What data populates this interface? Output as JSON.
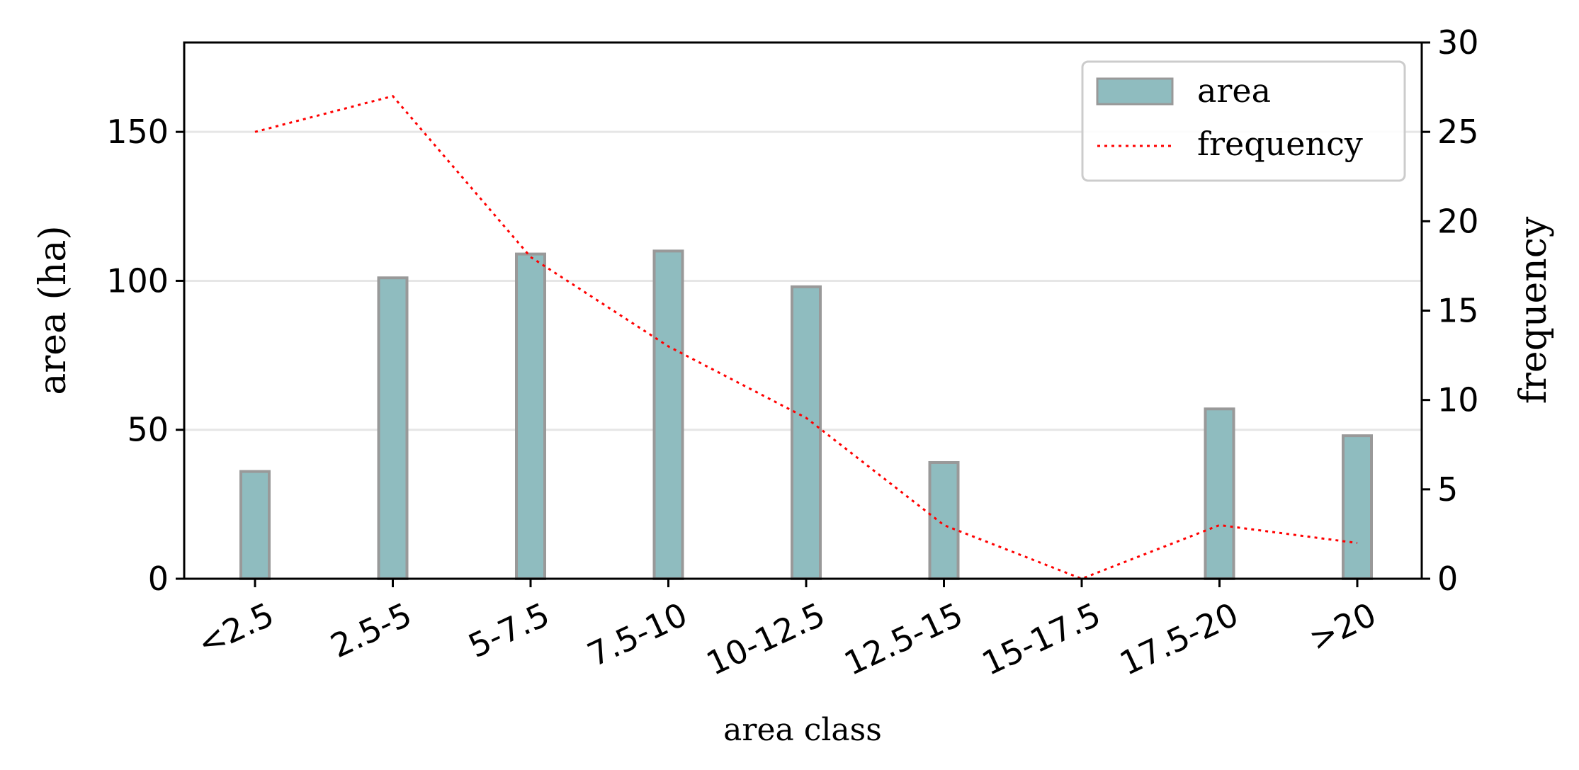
{
  "chart_data": {
    "type": "bar",
    "categories": [
      "<2.5",
      "2.5-5",
      "5-7.5",
      "7.5-10",
      "10-12.5",
      "12.5-15",
      "15-17.5",
      "17.5-20",
      ">20"
    ],
    "series": [
      {
        "name": "area",
        "type": "bar",
        "axis": "left",
        "color": "#8fbcbf",
        "values": [
          36,
          101,
          109,
          110,
          98,
          39,
          0,
          57,
          48
        ]
      },
      {
        "name": "frequency",
        "type": "line",
        "axis": "right",
        "color": "#ff0000",
        "style": "dotted",
        "values": [
          25,
          27,
          18,
          13,
          9,
          3,
          0,
          3,
          2
        ]
      }
    ],
    "xlabel": "area class",
    "ylabel": "area (ha)",
    "ylabel_right": "frequency",
    "ylim": [
      0,
      180
    ],
    "ylim_right": [
      0,
      30
    ],
    "yticks": [
      0,
      50,
      100,
      150
    ],
    "yticks_right": [
      0,
      5,
      10,
      15,
      20,
      25,
      30
    ],
    "grid": "horizontal",
    "legend": "top-right"
  }
}
